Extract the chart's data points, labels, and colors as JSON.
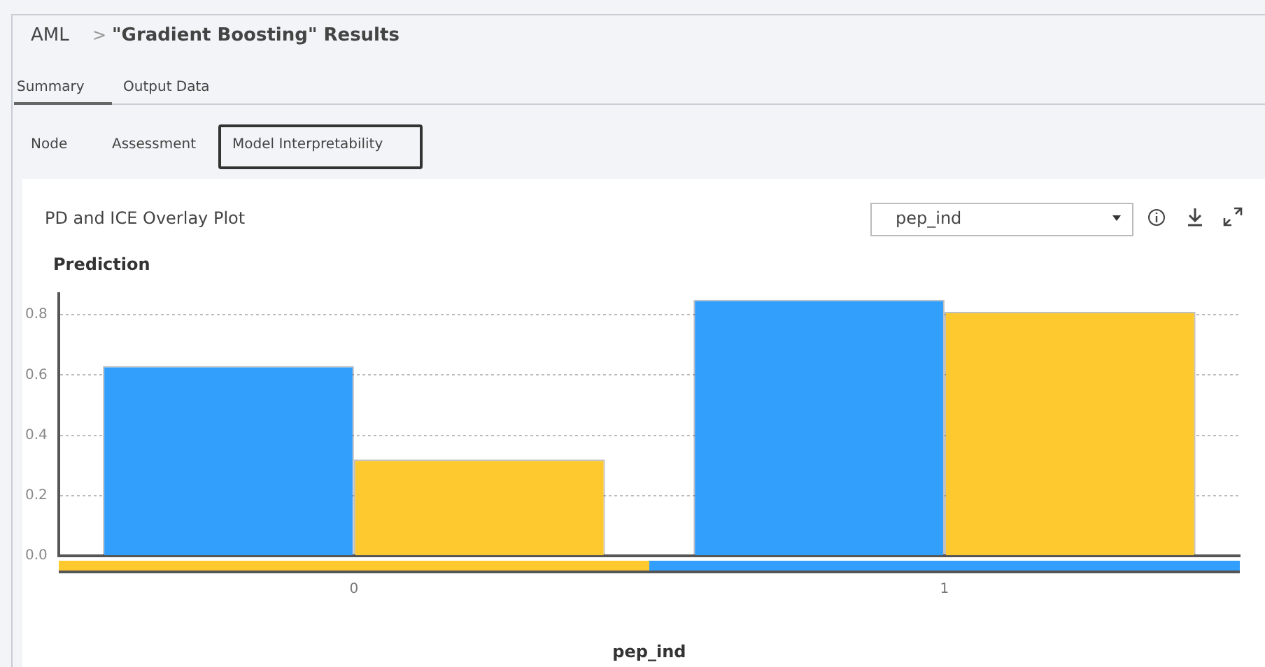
{
  "chart_data": {
    "type": "bar",
    "title": "PD and ICE Overlay Plot",
    "annotations": [
      "AML",
      ">",
      "\"Gradient Boosting\" Results",
      "Summary",
      "Output Data",
      "Node",
      "Assessment",
      "Model Interpretability",
      "pep_ind"
    ],
    "xlabel": "pep_ind",
    "ylabel": "Prediction",
    "categories": [
      "0",
      "1"
    ],
    "series": [
      {
        "color": "#339ffc",
        "values": [
          0.63,
          0.85
        ]
      },
      {
        "color": "#fdc92f",
        "values": [
          0.32,
          0.81
        ]
      }
    ],
    "ylim": [
      0,
      0.87
    ],
    "yticks": [
      {
        "value": 0,
        "label": "0.0"
      },
      {
        "value": 0.2,
        "label": "0.2"
      },
      {
        "value": 0.4,
        "label": "0.4"
      },
      {
        "value": 0.6,
        "label": "0.6"
      },
      {
        "value": 0.8,
        "label": "0.8"
      }
    ],
    "grid": "y",
    "legend": false
  }
}
